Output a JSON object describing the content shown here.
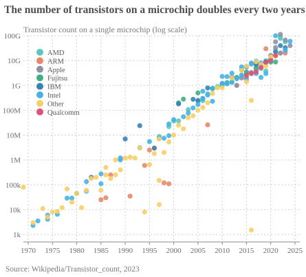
{
  "title": "The number of transistors on a microchip doubles every two years",
  "subtitle": "Transistor count on a single microchip (log scale)",
  "source": "Source: Wikipedia/Transistor_count, 2023",
  "chart_data": {
    "type": "scatter",
    "y_scale": "log",
    "xlim": [
      1969,
      2026
    ],
    "ylim": [
      500,
      100000000000
    ],
    "x_ticks": [
      1970,
      1975,
      1980,
      1985,
      1990,
      1995,
      2000,
      2005,
      2010,
      2015,
      2020,
      2025
    ],
    "y_ticks": [
      {
        "value": 1000,
        "label": "1k"
      },
      {
        "value": 10000,
        "label": "10k"
      },
      {
        "value": 100000,
        "label": "100k"
      },
      {
        "value": 1000000,
        "label": "1M"
      },
      {
        "value": 10000000,
        "label": "10M"
      },
      {
        "value": 100000000,
        "label": "100M"
      },
      {
        "value": 1000000000,
        "label": "1G"
      },
      {
        "value": 10000000000,
        "label": "10G"
      },
      {
        "value": 100000000000,
        "label": "100G"
      }
    ],
    "grid": true,
    "legend_position": "top-left",
    "series": [
      {
        "name": "AMD",
        "color": "#5cc7c0",
        "points": [
          [
            2000,
            37000000
          ],
          [
            2001,
            37500000
          ],
          [
            2003,
            105900000
          ],
          [
            2005,
            233000000
          ],
          [
            2006,
            243000000
          ],
          [
            2007,
            463000000
          ],
          [
            2008,
            758000000
          ],
          [
            2009,
            904000000
          ],
          [
            2010,
            1170000000
          ],
          [
            2011,
            1178000000
          ],
          [
            2012,
            1303000000
          ],
          [
            2013,
            2000000000
          ],
          [
            2014,
            2400000000
          ],
          [
            2015,
            3100000000
          ],
          [
            2017,
            4800000000
          ],
          [
            2017,
            9600000000
          ],
          [
            2018,
            4800000000
          ],
          [
            2019,
            3800000000
          ],
          [
            2019,
            9900000000
          ],
          [
            2020,
            15300000000
          ],
          [
            2022,
            90000000000
          ],
          [
            2022,
            78000000000
          ],
          [
            2023,
            57000000000
          ],
          [
            2021,
            26500000000
          ],
          [
            1999,
            22000000
          ],
          [
            1997,
            8800000
          ]
        ]
      },
      {
        "name": "ARM",
        "color": "#e8886a",
        "points": [
          [
            1985,
            25000
          ],
          [
            1986,
            30000
          ],
          [
            1987,
            250000
          ],
          [
            1991,
            35000
          ],
          [
            1994,
            600000
          ],
          [
            1995,
            2500000
          ],
          [
            1996,
            3000000
          ],
          [
            1998,
            120000
          ],
          [
            1999,
            110000
          ],
          [
            2007,
            26000000
          ],
          [
            2013,
            1000000000
          ],
          [
            2015,
            2000000000
          ],
          [
            2016,
            3300000000
          ],
          [
            2017,
            4300000000
          ],
          [
            2018,
            6900000000
          ],
          [
            2019,
            8500000000
          ],
          [
            2020,
            11800000000
          ],
          [
            2021,
            16000000000
          ],
          [
            2022,
            20000000000
          ],
          [
            2023,
            20000000000
          ],
          [
            2019,
            30000000000
          ]
        ]
      },
      {
        "name": "Apple",
        "color": "#8d93a5",
        "points": [
          [
            2013,
            1000000000
          ],
          [
            2014,
            2000000000
          ],
          [
            2015,
            3000000000
          ],
          [
            2016,
            3300000000
          ],
          [
            2017,
            4300000000
          ],
          [
            2018,
            6900000000
          ],
          [
            2019,
            8500000000
          ],
          [
            2020,
            11800000000
          ],
          [
            2020,
            16000000000
          ],
          [
            2021,
            33700000000
          ],
          [
            2021,
            57000000000
          ],
          [
            2022,
            20000000000
          ],
          [
            2022,
            114000000000
          ],
          [
            2023,
            25000000000
          ],
          [
            2023,
            67000000000
          ],
          [
            2024,
            40000000000
          ]
        ]
      },
      {
        "name": "Fujitsu",
        "color": "#3daf86",
        "points": [
          [
            2001,
            200000000
          ],
          [
            2002,
            280000000
          ],
          [
            2005,
            500000000
          ],
          [
            2008,
            760000000
          ],
          [
            2010,
            1000000000
          ],
          [
            2011,
            1300000000
          ],
          [
            2013,
            2100000000
          ],
          [
            2015,
            3500000000
          ],
          [
            2017,
            5500000000
          ],
          [
            2020,
            8700000000
          ],
          [
            2021,
            8800000000
          ]
        ]
      },
      {
        "name": "IBM",
        "color": "#3a82b4",
        "points": [
          [
            1980,
            45000
          ],
          [
            1983,
            200000
          ],
          [
            1990,
            7000000
          ],
          [
            1993,
            24000000
          ],
          [
            1996,
            3000000
          ],
          [
            2001,
            180000000
          ],
          [
            2004,
            276000000
          ],
          [
            2005,
            250000000
          ],
          [
            2006,
            300000000
          ],
          [
            2007,
            790000000
          ],
          [
            2010,
            1200000000
          ],
          [
            2012,
            2100000000
          ],
          [
            2014,
            4200000000
          ],
          [
            2015,
            5600000000
          ],
          [
            2017,
            7100000000
          ],
          [
            2017,
            8000000000
          ],
          [
            2019,
            9000000000
          ],
          [
            2021,
            22000000000
          ],
          [
            2022,
            40000000000
          ],
          [
            2023,
            33000000000
          ]
        ]
      },
      {
        "name": "Intel",
        "color": "#49b1e4",
        "points": [
          [
            1971,
            2300
          ],
          [
            1972,
            3500
          ],
          [
            1974,
            4100
          ],
          [
            1974,
            6000
          ],
          [
            1976,
            6500
          ],
          [
            1978,
            29000
          ],
          [
            1979,
            29000
          ],
          [
            1982,
            55000
          ],
          [
            1982,
            134000
          ],
          [
            1985,
            275000
          ],
          [
            1985,
            110000
          ],
          [
            1989,
            1200000
          ],
          [
            1989,
            1000000
          ],
          [
            1993,
            3100000
          ],
          [
            1995,
            5500000
          ],
          [
            1997,
            7500000
          ],
          [
            1998,
            7500000
          ],
          [
            1999,
            9500000
          ],
          [
            1999,
            28000000
          ],
          [
            2000,
            42000000
          ],
          [
            2002,
            55000000
          ],
          [
            2003,
            77000000
          ],
          [
            2004,
            125000000
          ],
          [
            2005,
            169000000
          ],
          [
            2006,
            291000000
          ],
          [
            2006,
            582000000
          ],
          [
            2007,
            410000000
          ],
          [
            2008,
            731000000
          ],
          [
            2008,
            230000000
          ],
          [
            2010,
            1170000000
          ],
          [
            2010,
            2300000000
          ],
          [
            2011,
            1160000000
          ],
          [
            2011,
            2270000000
          ],
          [
            2012,
            1400000000
          ],
          [
            2012,
            3100000000
          ],
          [
            2013,
            1860000000
          ],
          [
            2014,
            2600000000
          ],
          [
            2014,
            5560000000
          ],
          [
            2015,
            1750000000
          ],
          [
            2016,
            7200000000
          ],
          [
            2016,
            8000000000
          ],
          [
            2017,
            3000000000
          ],
          [
            2018,
            2100000000
          ],
          [
            2018,
            8000000000
          ],
          [
            2019,
            3000000000
          ],
          [
            2020,
            11000000000
          ],
          [
            2021,
            100000000000
          ],
          [
            2023,
            26000000000
          ],
          [
            2024,
            60000000000
          ]
        ]
      },
      {
        "name": "Other",
        "color": "#f7cf6a",
        "points": [
          [
            1969,
            80000
          ],
          [
            1971,
            3000
          ],
          [
            1973,
            11000
          ],
          [
            1974,
            5000
          ],
          [
            1975,
            8000
          ],
          [
            1976,
            8500
          ],
          [
            1977,
            12000
          ],
          [
            1978,
            68000
          ],
          [
            1979,
            20000
          ],
          [
            1980,
            45000
          ],
          [
            1981,
            12000
          ],
          [
            1982,
            60000
          ],
          [
            1983,
            180000
          ],
          [
            1984,
            200000
          ],
          [
            1985,
            60000
          ],
          [
            1986,
            250000
          ],
          [
            1986,
            500000
          ],
          [
            1987,
            180000
          ],
          [
            1988,
            250000
          ],
          [
            1988,
            1000000
          ],
          [
            1989,
            400000
          ],
          [
            1990,
            1200000
          ],
          [
            1991,
            1300000
          ],
          [
            1992,
            1200000
          ],
          [
            1993,
            3000000
          ],
          [
            1994,
            8000
          ],
          [
            1995,
            650000
          ],
          [
            1996,
            1800000
          ],
          [
            1997,
            7000000
          ],
          [
            1997,
            150000
          ],
          [
            1997,
            16000
          ],
          [
            1998,
            2000000
          ],
          [
            1999,
            5300000
          ],
          [
            2000,
            10000000
          ],
          [
            2001,
            25000000
          ],
          [
            2002,
            18000000
          ],
          [
            2003,
            50000000
          ],
          [
            2004,
            60000000
          ],
          [
            2005,
            100000000
          ],
          [
            2006,
            130000000
          ],
          [
            2007,
            200000000
          ],
          [
            2008,
            470000000
          ],
          [
            2009,
            800000000
          ],
          [
            2010,
            800000000
          ],
          [
            2012,
            2000000000
          ],
          [
            2014,
            4000000000
          ],
          [
            2015,
            1400000000
          ],
          [
            2015,
            6000000000
          ],
          [
            2016,
            250000000
          ],
          [
            2016,
            1500
          ],
          [
            2017,
            9000000000
          ],
          [
            2018,
            7000000000
          ],
          [
            2019,
            6000000000
          ],
          [
            2020,
            14000000000
          ],
          [
            2021,
            15000000000
          ]
        ]
      },
      {
        "name": "Qualcomm",
        "color": "#e05177",
        "points": [
          [
            2015,
            2500000000
          ],
          [
            2016,
            3000000000
          ],
          [
            2017,
            3500000000
          ],
          [
            2018,
            5300000000
          ],
          [
            2019,
            8500000000
          ],
          [
            2020,
            10000000000
          ],
          [
            2021,
            16000000000
          ]
        ]
      }
    ]
  }
}
